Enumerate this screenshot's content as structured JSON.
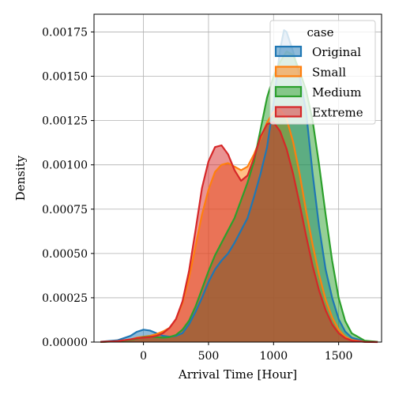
{
  "chart_data": {
    "type": "area",
    "title": "",
    "xlabel": "Arrival Time [Hour]",
    "ylabel": "Density",
    "xlim": [
      -380,
      1830
    ],
    "ylim": [
      0,
      0.00185
    ],
    "xticks": [
      0,
      500,
      1000,
      1500
    ],
    "yticks": [
      0,
      0.00025,
      0.0005,
      0.00075,
      0.001,
      0.00125,
      0.0015,
      0.00175
    ],
    "xtick_labels": [
      "0",
      "500",
      "1000",
      "1500"
    ],
    "ytick_labels": [
      "0.00000",
      "0.00025",
      "0.00050",
      "0.00075",
      "0.00100",
      "0.00125",
      "0.00150",
      "0.00175"
    ],
    "grid": true,
    "legend": {
      "title": "case",
      "position": "top-right"
    },
    "series": [
      {
        "name": "Original",
        "color": "#1f77b4",
        "x": [
          -330,
          -200,
          -100,
          -50,
          0,
          50,
          100,
          150,
          200,
          250,
          300,
          350,
          400,
          450,
          500,
          550,
          600,
          650,
          700,
          750,
          800,
          850,
          900,
          950,
          1000,
          1050,
          1080,
          1100,
          1150,
          1200,
          1250,
          1300,
          1350,
          1400,
          1450,
          1500,
          1550,
          1600,
          1700,
          1800
        ],
        "y": [
          2e-06,
          1e-05,
          3.5e-05,
          5.8e-05,
          7e-05,
          6.5e-05,
          5e-05,
          3.5e-05,
          3e-05,
          3.5e-05,
          5e-05,
          0.0001,
          0.00017,
          0.00025,
          0.00034,
          0.00041,
          0.00046,
          0.0005,
          0.00056,
          0.00063,
          0.0007,
          0.00082,
          0.00095,
          0.0011,
          0.00135,
          0.00165,
          0.00176,
          0.00175,
          0.00164,
          0.0015,
          0.0013,
          0.00095,
          0.00065,
          0.00041,
          0.00025,
          0.00013,
          6e-05,
          2.5e-05,
          5e-06,
          1e-06
        ]
      },
      {
        "name": "Small",
        "color": "#ff7f0e",
        "x": [
          -330,
          -200,
          -100,
          -50,
          0,
          50,
          100,
          150,
          200,
          250,
          300,
          350,
          400,
          450,
          500,
          550,
          600,
          650,
          700,
          750,
          800,
          850,
          900,
          950,
          1000,
          1050,
          1100,
          1150,
          1200,
          1250,
          1300,
          1350,
          1400,
          1450,
          1500,
          1550,
          1600,
          1700,
          1800
        ],
        "y": [
          1e-06,
          5e-06,
          1.5e-05,
          2.5e-05,
          3e-05,
          3.5e-05,
          4.5e-05,
          6e-05,
          8e-05,
          0.00013,
          0.00022,
          0.00036,
          0.00054,
          0.00072,
          0.00086,
          0.00096,
          0.001,
          0.00101,
          0.00099,
          0.00097,
          0.00099,
          0.00106,
          0.00115,
          0.00124,
          0.0013,
          0.00131,
          0.00126,
          0.00113,
          0.00095,
          0.00074,
          0.00055,
          0.00038,
          0.00024,
          0.00014,
          7e-05,
          3e-05,
          1.2e-05,
          2e-06,
          2e-07
        ]
      },
      {
        "name": "Medium",
        "color": "#2ca02c",
        "x": [
          -330,
          -200,
          -100,
          -50,
          0,
          50,
          100,
          150,
          200,
          250,
          300,
          350,
          400,
          450,
          500,
          550,
          600,
          650,
          700,
          750,
          800,
          850,
          900,
          950,
          1000,
          1050,
          1100,
          1150,
          1200,
          1250,
          1300,
          1350,
          1400,
          1450,
          1500,
          1550,
          1600,
          1700,
          1800
        ],
        "y": [
          1e-06,
          4e-06,
          1.2e-05,
          2e-05,
          2.8e-05,
          3e-05,
          2.8e-05,
          2.5e-05,
          2.8e-05,
          4e-05,
          7e-05,
          0.00012,
          0.0002,
          0.0003,
          0.0004,
          0.00049,
          0.00056,
          0.00063,
          0.0007,
          0.0008,
          0.0009,
          0.00102,
          0.0012,
          0.00138,
          0.0015,
          0.00158,
          0.00164,
          0.00162,
          0.00153,
          0.00142,
          0.00125,
          0.001,
          0.00072,
          0.00046,
          0.00025,
          0.00012,
          5e-05,
          8e-06,
          1e-06
        ]
      },
      {
        "name": "Extreme",
        "color": "#d62728",
        "x": [
          -330,
          -200,
          -100,
          -50,
          0,
          50,
          100,
          150,
          200,
          250,
          300,
          350,
          400,
          450,
          500,
          550,
          600,
          650,
          700,
          750,
          800,
          850,
          900,
          950,
          1000,
          1050,
          1100,
          1150,
          1200,
          1250,
          1300,
          1350,
          1400,
          1450,
          1500,
          1550,
          1600,
          1700,
          1800
        ],
        "y": [
          1e-06,
          5e-06,
          1.5e-05,
          2.2e-05,
          2.5e-05,
          2.8e-05,
          3.5e-05,
          5e-05,
          8e-05,
          0.00013,
          0.00023,
          0.0004,
          0.00063,
          0.00087,
          0.00102,
          0.0011,
          0.00111,
          0.00106,
          0.00097,
          0.00091,
          0.00094,
          0.00104,
          0.00116,
          0.00123,
          0.00124,
          0.00119,
          0.00109,
          0.00095,
          0.00078,
          0.0006,
          0.00043,
          0.00029,
          0.00018,
          0.0001,
          5e-05,
          2.2e-05,
          8e-06,
          1e-06,
          1e-07
        ]
      }
    ]
  }
}
